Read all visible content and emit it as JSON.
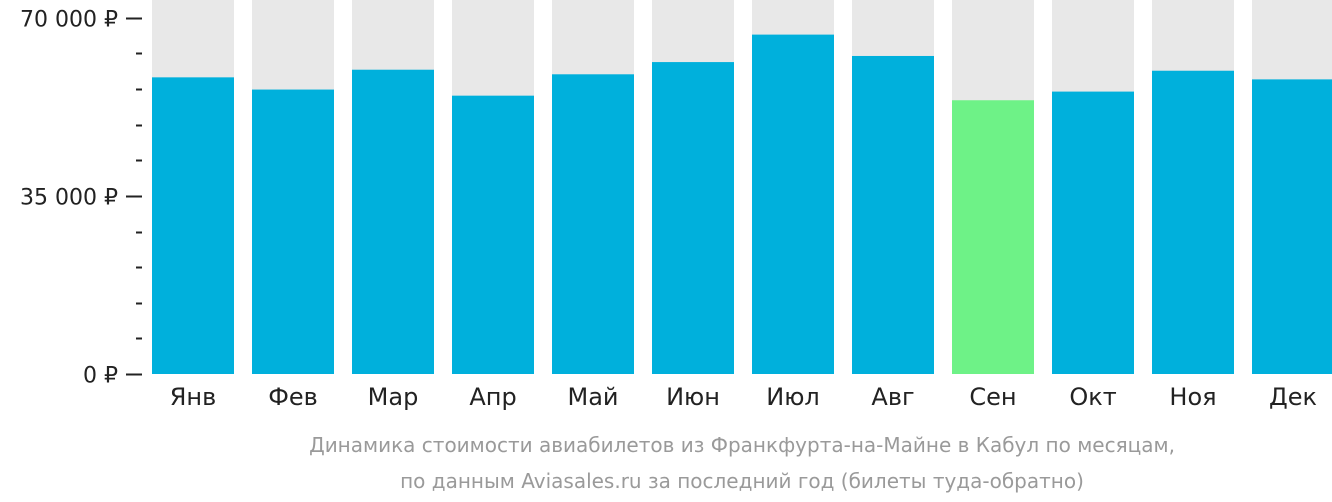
{
  "chart_data": {
    "type": "bar",
    "title": "Динамика стоимости авиабилетов из Франкфурта-на-Майне в Кабул по месяцам,",
    "subtitle": "по данным Aviasales.ru за последний год (билеты туда-обратно)",
    "categories": [
      "Янв",
      "Фев",
      "Мар",
      "Апр",
      "Май",
      "Июн",
      "Июл",
      "Авг",
      "Сен",
      "Окт",
      "Ноя",
      "Дек"
    ],
    "values": [
      58300,
      55900,
      59800,
      54700,
      58900,
      61300,
      66700,
      62500,
      53800,
      55500,
      59600,
      57900
    ],
    "highlight_index": 8,
    "ylim": [
      0,
      73500
    ],
    "yticks": [
      {
        "value": 0,
        "label": "0 ₽"
      },
      {
        "value": 35000,
        "label": "35 000 ₽"
      },
      {
        "value": 70000,
        "label": "70 000 ₽"
      }
    ],
    "minor_tick_step": 7000,
    "grid": false,
    "legend": "none",
    "colors": {
      "bar": "#00b0dc",
      "highlight": "#6ef287",
      "background_bar": "#e8e8e8",
      "axis": "#222222",
      "caption": "#9a9a9a"
    }
  }
}
